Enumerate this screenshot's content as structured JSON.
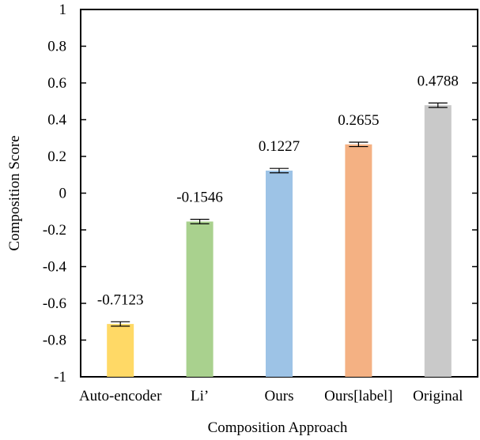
{
  "chart_data": {
    "type": "bar",
    "categories": [
      "Auto-encoder",
      "Li’",
      "Ours",
      "Ours[label]",
      "Original"
    ],
    "series": [
      {
        "values": [
          -0.7123,
          -0.1546,
          0.1227,
          0.2655,
          0.4788
        ],
        "errors": [
          0.012,
          0.012,
          0.012,
          0.012,
          0.012
        ],
        "data_labels": [
          "-0.7123",
          "-0.1546",
          "0.1227",
          "0.2655",
          "0.4788"
        ],
        "colors": [
          "#FFD966",
          "#A9D18E",
          "#9DC3E6",
          "#F4B183",
          "#C9C9C9"
        ]
      }
    ],
    "xlabel": "Composition Approach",
    "ylabel": "Composition Score",
    "ylim": [
      -1,
      1
    ],
    "yticks": [
      1,
      0.8,
      0.6,
      0.4,
      0.2,
      0,
      -0.2,
      -0.4,
      -0.6,
      -0.8,
      -1
    ],
    "ytick_labels": [
      "1",
      "0.8",
      "0.6",
      "0.4",
      "0.2",
      "0",
      "-0.2",
      "-0.4",
      "-0.6",
      "-0.8",
      "-1"
    ],
    "grid": false,
    "legend": "none"
  }
}
